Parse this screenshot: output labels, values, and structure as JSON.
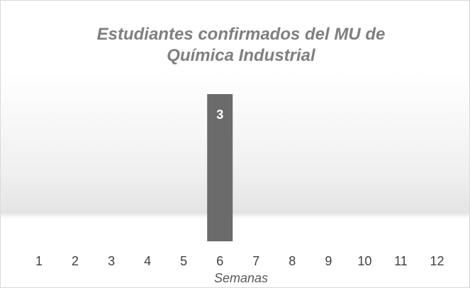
{
  "chart_data": {
    "type": "bar",
    "title": "Estudiantes confirmados del MU de Química Industrial",
    "x_label": "Semanas",
    "categories": [
      "1",
      "2",
      "3",
      "4",
      "5",
      "6",
      "7",
      "8",
      "9",
      "10",
      "11",
      "12"
    ],
    "values": [
      0,
      0,
      0,
      0,
      0,
      3,
      0,
      0,
      0,
      0,
      0,
      0
    ],
    "color": "#6b6b6b",
    "ylim": [
      0,
      3
    ]
  }
}
